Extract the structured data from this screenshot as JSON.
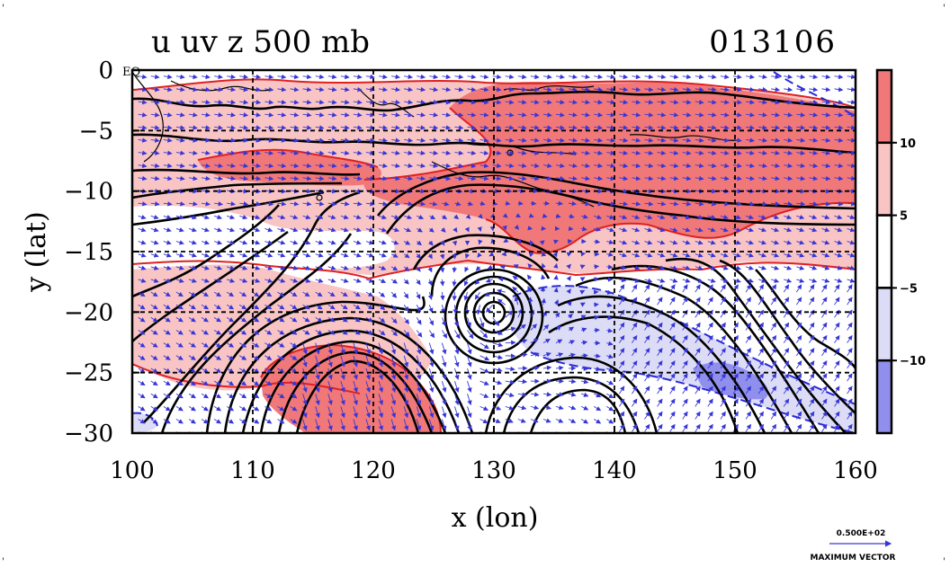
{
  "chart_data": {
    "type": "contour-map",
    "title": "u uv z 500 mb",
    "date_label": "013106",
    "xlabel": "x (lon)",
    "ylabel": "y (lat)",
    "xlim": [
      100,
      160
    ],
    "ylim": [
      -30,
      0
    ],
    "x_ticks": [
      "100",
      "110",
      "120",
      "130",
      "140",
      "150",
      "160"
    ],
    "y_ticks": [
      "0",
      "−5",
      "−10",
      "−15",
      "−20",
      "−25",
      "−30"
    ],
    "y_tick_values": [
      0,
      -5,
      -10,
      -15,
      -20,
      -25,
      -30
    ],
    "x_tick_values": [
      100,
      110,
      120,
      130,
      140,
      150,
      160
    ],
    "eq_label": "EQ",
    "grid": true,
    "colorbar": {
      "ticks": [
        "10",
        "5",
        "−5",
        "−10"
      ],
      "bins": [
        {
          "label": "> 10",
          "color": "#f07878"
        },
        {
          "label": "5 to 10",
          "color": "#f8c4c4"
        },
        {
          "label": "-5 to 5",
          "color": "#ffffff"
        },
        {
          "label": "-10 to -5",
          "color": "#dcdcf6"
        },
        {
          "label": "< -10",
          "color": "#9090ec"
        }
      ]
    },
    "low_center": {
      "lon": 130.5,
      "lat": -20
    },
    "strong_westerlies": {
      "lon_range": [
        114,
        128
      ],
      "lat_range": [
        -30,
        -22
      ]
    },
    "reference_vector": {
      "value": "0.500E+02",
      "label": "MAXIMUM VECTOR"
    }
  }
}
